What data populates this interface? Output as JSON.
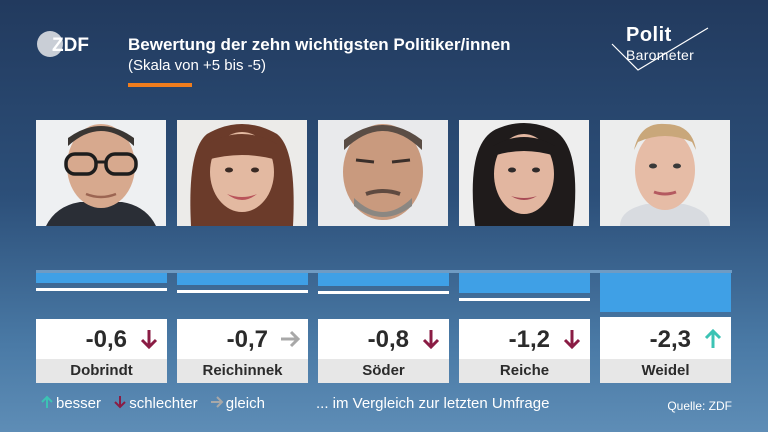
{
  "logos": {
    "broadcaster": "ZDF",
    "show_line1": "Polit",
    "show_line2": "Barometer"
  },
  "header": {
    "title": "Bewertung der zehn wichtigsten Politiker/innen",
    "subtitle": "(Skala von +5 bis -5)"
  },
  "colors": {
    "bar": "#3fa0e6",
    "accent": "#f07d1c",
    "arrow_up": "#3cc3b4",
    "arrow_down": "#8a1c44",
    "arrow_right": "#a8a8a8"
  },
  "chart_data": {
    "type": "bar",
    "title": "Bewertung der zehn wichtigsten Politiker/innen",
    "subtitle": "(Skala von +5 bis -5)",
    "categories": [
      "Dobrindt",
      "Reichinnek",
      "Söder",
      "Reiche",
      "Weidel"
    ],
    "values": [
      -0.6,
      -0.7,
      -0.8,
      -1.2,
      -2.3
    ],
    "labels": [
      "-0,6",
      "-0,7",
      "-0,8",
      "-1,2",
      "-2,3"
    ],
    "trend": [
      "down",
      "right",
      "down",
      "down",
      "up"
    ],
    "ylim": [
      -5,
      5
    ],
    "orientation": "bars hang downward from zero line"
  },
  "legend": {
    "better": "besser",
    "worse": "schlechter",
    "same": "gleich",
    "note": "... im Vergleich zur letzten Umfrage"
  },
  "source": "Quelle: ZDF"
}
